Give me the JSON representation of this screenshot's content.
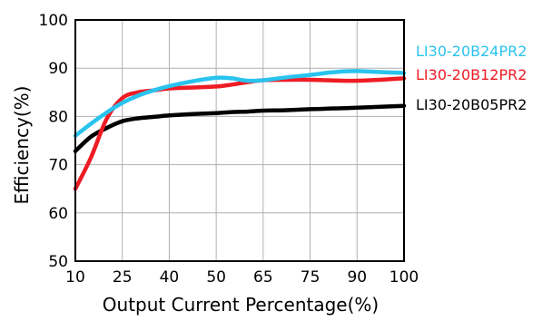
{
  "chart_data": {
    "type": "line",
    "title": "",
    "xlabel": "Output Current Percentage(%)",
    "ylabel": "Efficiency(%)",
    "xlim": [
      10,
      100
    ],
    "ylim": [
      50,
      100
    ],
    "x_ticks": [
      "10",
      "25",
      "40",
      "50",
      "65",
      "75",
      "90",
      "100"
    ],
    "y_ticks": [
      50,
      60,
      70,
      80,
      90,
      100
    ],
    "grid": true,
    "legend_position": "right",
    "series": [
      {
        "name": "LI30-20B24PR2",
        "color": "#29C3EE",
        "x": [
          10,
          15,
          20,
          25,
          30,
          35,
          40,
          45,
          50,
          55,
          60,
          65,
          70,
          75,
          80,
          85,
          90,
          95,
          100
        ],
        "y": [
          76,
          78.5,
          80.8,
          82.8,
          84.3,
          85.4,
          86.3,
          87.3,
          88.0,
          87.9,
          87.4,
          87.5,
          88.1,
          88.6,
          89.0,
          89.3,
          89.4,
          89.2,
          89.0
        ]
      },
      {
        "name": "LI30-20B12PR2",
        "color": "#EE1C24",
        "x": [
          10,
          15,
          20,
          25,
          30,
          35,
          40,
          45,
          50,
          55,
          60,
          65,
          70,
          75,
          80,
          85,
          90,
          95,
          100
        ],
        "y": [
          65,
          71.5,
          79.5,
          83.8,
          85.0,
          85.4,
          85.8,
          86.0,
          86.2,
          86.6,
          87.1,
          87.5,
          87.6,
          87.6,
          87.5,
          87.4,
          87.4,
          87.6,
          87.9
        ]
      },
      {
        "name": "LI30-20B05PR2",
        "color": "#000000",
        "x": [
          10,
          15,
          20,
          25,
          30,
          35,
          40,
          45,
          50,
          55,
          60,
          65,
          70,
          75,
          80,
          85,
          90,
          95,
          100
        ],
        "y": [
          72.8,
          75.8,
          77.6,
          79.0,
          79.6,
          79.9,
          80.2,
          80.5,
          80.7,
          80.9,
          81.0,
          81.2,
          81.3,
          81.5,
          81.6,
          81.7,
          81.8,
          82.0,
          82.2
        ]
      }
    ]
  }
}
